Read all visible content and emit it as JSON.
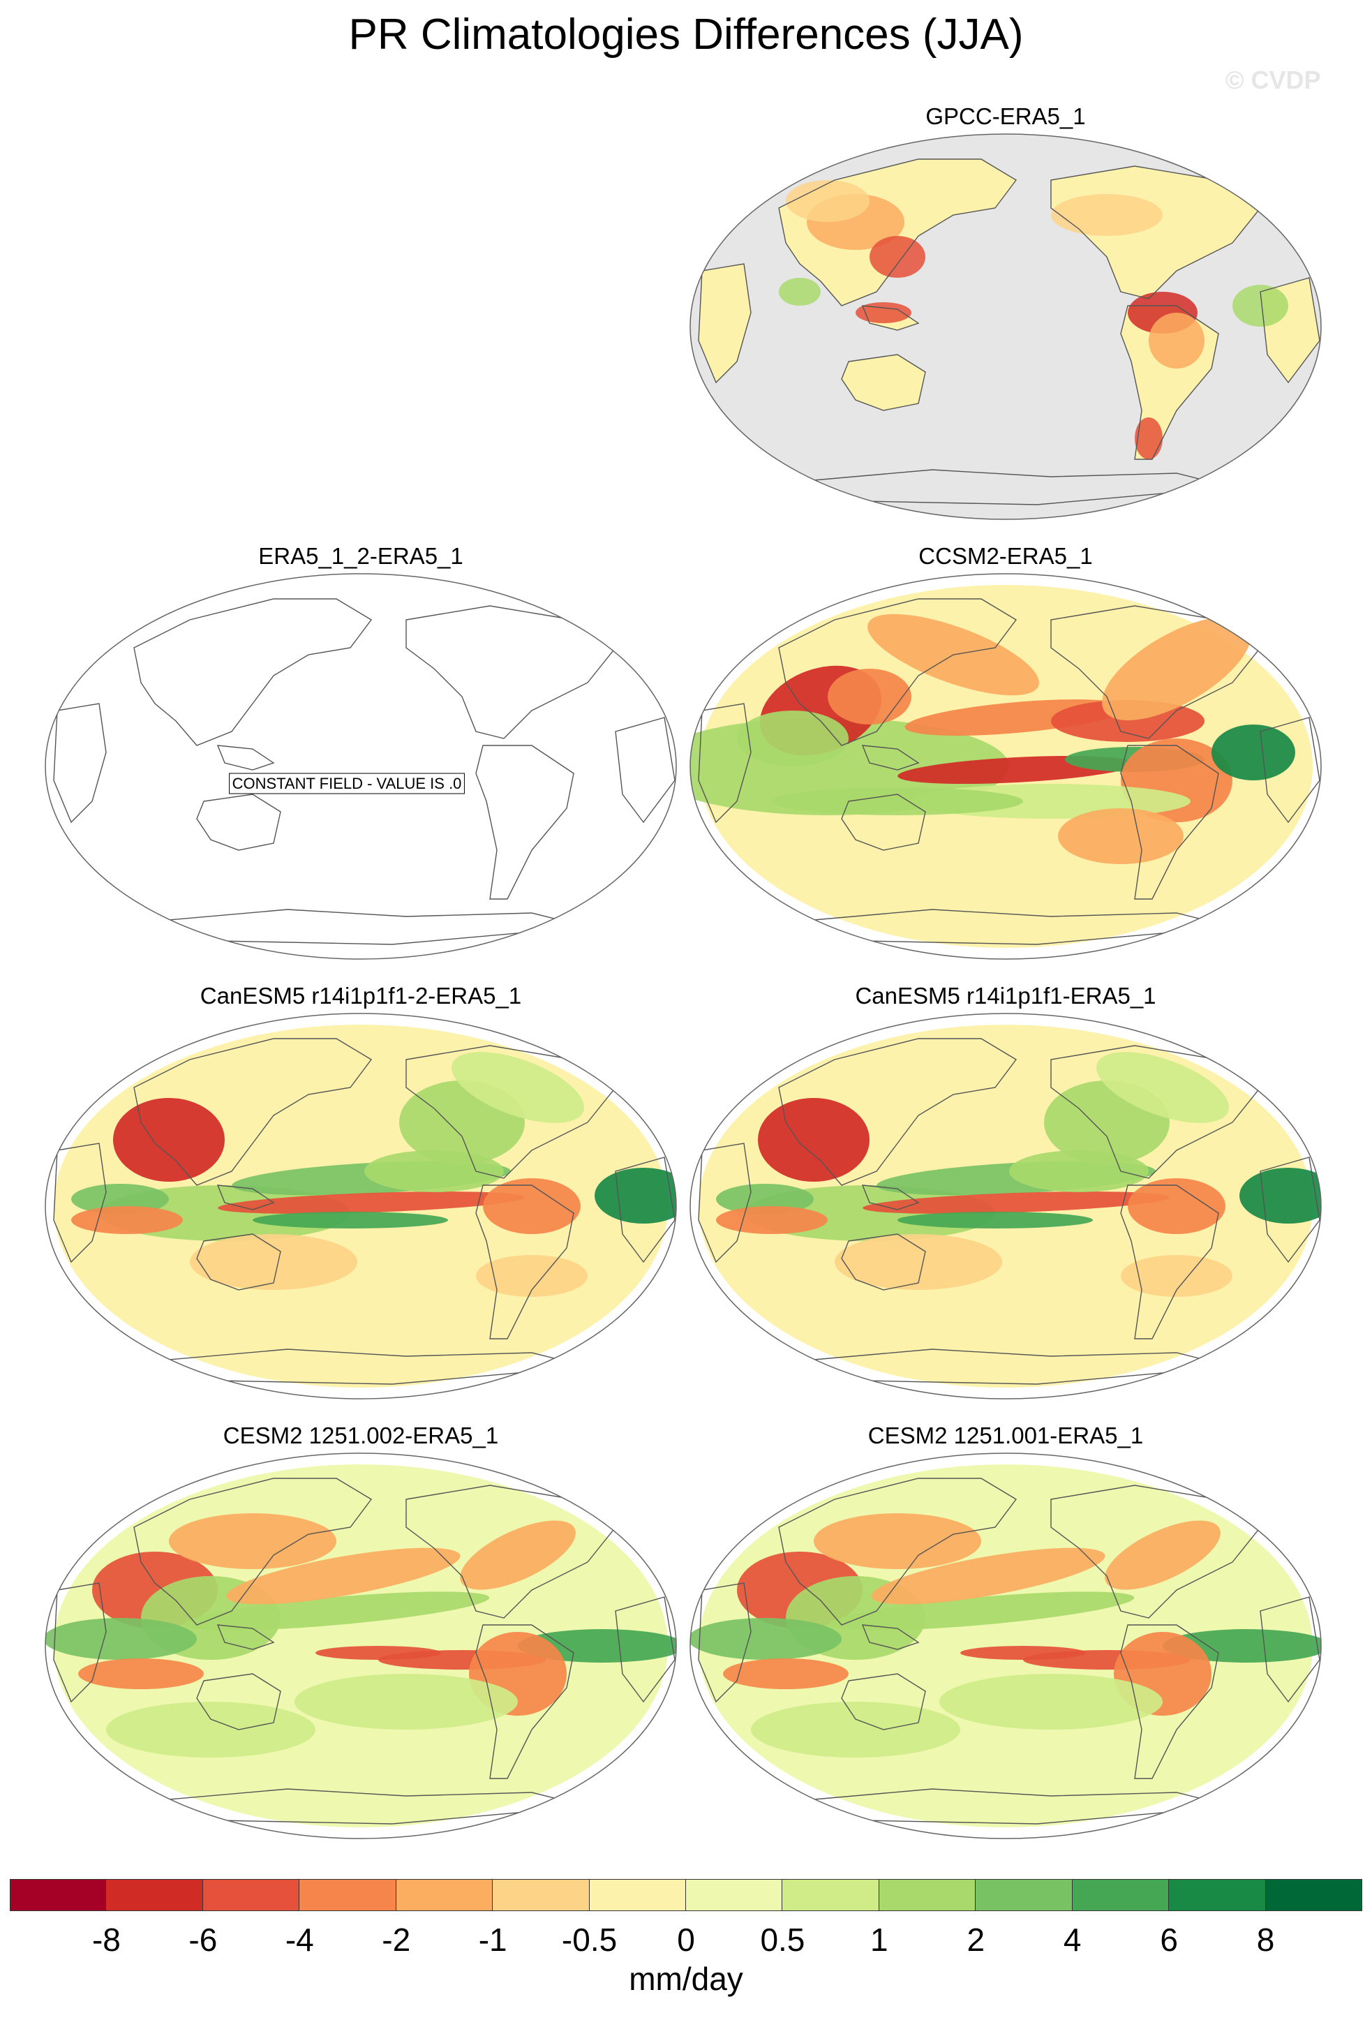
{
  "title": "PR Climatologies Differences (JJA)",
  "watermark": "© CVDP",
  "panels": [
    {
      "label": "GPCC-ERA5_1",
      "kind": "land",
      "icon": "globe-map-icon"
    },
    {
      "label": "ERA5_1_2-ERA5_1",
      "kind": "constant",
      "constant_text": "CONSTANT FIELD - VALUE IS .0",
      "icon": "globe-map-icon"
    },
    {
      "label": "CCSM2-ERA5_1",
      "kind": "full_a",
      "icon": "globe-map-icon"
    },
    {
      "label": "CanESM5 r14i1p1f1-2-ERA5_1",
      "kind": "full_b",
      "icon": "globe-map-icon"
    },
    {
      "label": "CanESM5 r14i1p1f1-ERA5_1",
      "kind": "full_b",
      "icon": "globe-map-icon"
    },
    {
      "label": "CESM2 1251.002-ERA5_1",
      "kind": "full_c",
      "icon": "globe-map-icon"
    },
    {
      "label": "CESM2 1251.001-ERA5_1",
      "kind": "full_c",
      "icon": "globe-map-icon"
    }
  ],
  "colorbar": {
    "colors": [
      "#a50026",
      "#d12b26",
      "#e5513a",
      "#f5854a",
      "#fbad60",
      "#fdd487",
      "#fdf2ac",
      "#eef8ae",
      "#cfec89",
      "#a8d96a",
      "#79c264",
      "#45a754",
      "#188a45",
      "#006837"
    ],
    "tick_labels": [
      "-8",
      "-6",
      "-4",
      "-2",
      "-1",
      "-0.5",
      "0",
      "0.5",
      "1",
      "2",
      "4",
      "6",
      "8"
    ],
    "units": "mm/day"
  }
}
